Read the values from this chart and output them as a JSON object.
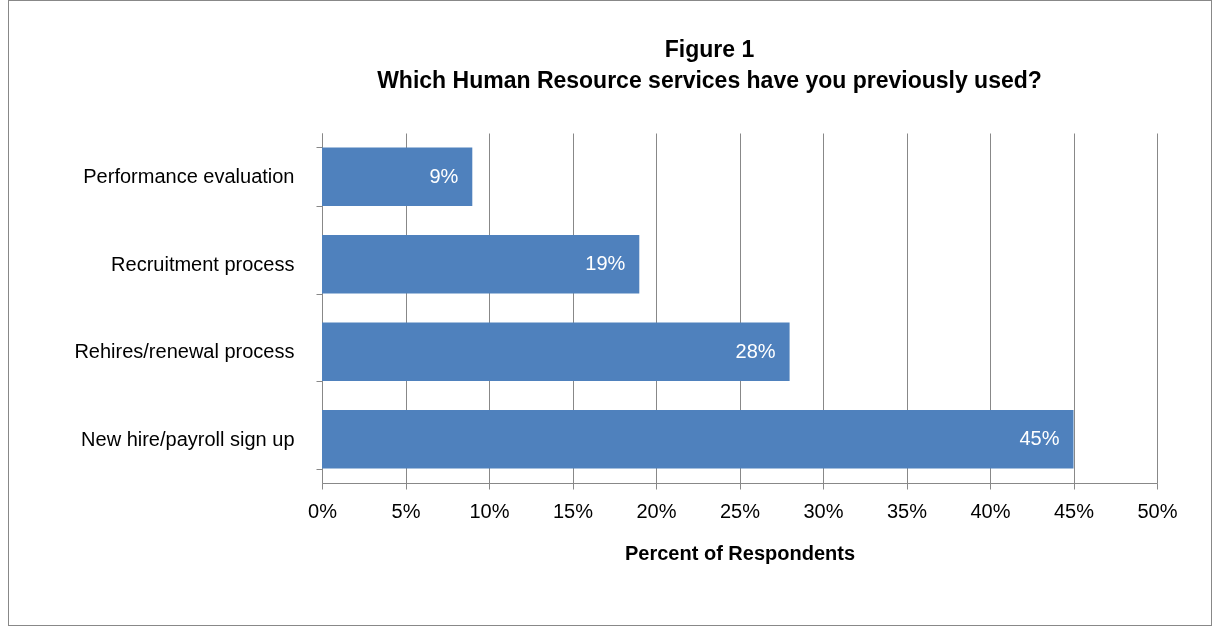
{
  "chart_data": {
    "type": "bar",
    "orientation": "horizontal",
    "title": "Figure 1",
    "subtitle": "Which Human Resource services have you previously used?",
    "xlabel": "Percent of Respondents",
    "categories": [
      "Performance evaluation",
      "Recruitment process",
      "Rehires/renewal process",
      "New hire/payroll sign up"
    ],
    "values": [
      9,
      19,
      28,
      45
    ],
    "color": "#4f81bd",
    "data_labels": true,
    "value_labels": [
      "9%",
      "19%",
      "28%",
      "45%"
    ],
    "xlim": [
      0,
      50
    ],
    "xticks": [
      {
        "value": 0,
        "label": "0%"
      },
      {
        "value": 5,
        "label": "5%"
      },
      {
        "value": 10,
        "label": "10%"
      },
      {
        "value": 15,
        "label": "15%"
      },
      {
        "value": 20,
        "label": "20%"
      },
      {
        "value": 25,
        "label": "25%"
      },
      {
        "value": 30,
        "label": "30%"
      },
      {
        "value": 35,
        "label": "35%"
      },
      {
        "value": 40,
        "label": "40%"
      },
      {
        "value": 45,
        "label": "45%"
      },
      {
        "value": 50,
        "label": "50%"
      }
    ],
    "grid": "x"
  }
}
